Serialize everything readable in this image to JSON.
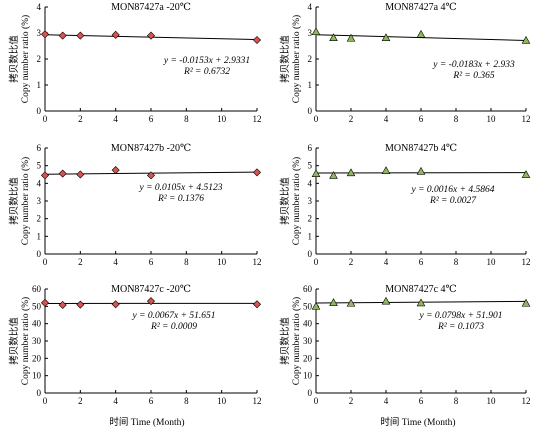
{
  "figure": {
    "x_axis_label": "时间 Time (Month)",
    "y_axis_label_cn": "拷贝数比值",
    "y_axis_label_en": "Copy number ratio (%)"
  },
  "chart_data": [
    {
      "type": "scatter",
      "title": "MON87427a -20℃",
      "marker": "diamond",
      "marker_color": "#d9534f",
      "x": [
        0,
        1,
        2,
        4,
        6,
        12
      ],
      "y": [
        2.95,
        2.9,
        2.9,
        2.93,
        2.9,
        2.73
      ],
      "xlim": [
        0,
        12
      ],
      "xticks": [
        0,
        2,
        4,
        6,
        8,
        10,
        12
      ],
      "ylim": [
        0,
        4
      ],
      "yticks": [
        0,
        1,
        2,
        3,
        4
      ],
      "trendline": {
        "slope": -0.0153,
        "intercept": 2.9331
      },
      "equation": "y = -0.0153x + 2.9331",
      "r2": "R² = 0.6732",
      "ylabel_cn": "拷贝数比值",
      "ylabel_en": "Copy number ratio (%)"
    },
    {
      "type": "scatter",
      "title": "MON87427a  4℃",
      "marker": "triangle",
      "marker_color": "#8fb85a",
      "x": [
        0,
        1,
        2,
        4,
        6,
        12
      ],
      "y": [
        3.05,
        2.82,
        2.8,
        2.82,
        2.95,
        2.72
      ],
      "xlim": [
        0,
        12
      ],
      "xticks": [
        0,
        2,
        4,
        6,
        8,
        10,
        12
      ],
      "ylim": [
        0,
        4
      ],
      "yticks": [
        0,
        1,
        2,
        3,
        4
      ],
      "trendline": {
        "slope": -0.0183,
        "intercept": 2.933
      },
      "equation": "y = -0.0183x + 2.933",
      "r2": "R² = 0.365",
      "ylabel_cn": "拷贝数比值",
      "ylabel_en": "Copy number ratio (%)"
    },
    {
      "type": "scatter",
      "title": "MON87427b  -20℃",
      "marker": "diamond",
      "marker_color": "#d9534f",
      "x": [
        0,
        1,
        2,
        4,
        6,
        12
      ],
      "y": [
        4.45,
        4.55,
        4.5,
        4.75,
        4.45,
        4.62
      ],
      "xlim": [
        0,
        12
      ],
      "xticks": [
        0,
        2,
        4,
        6,
        8,
        10,
        12
      ],
      "ylim": [
        0,
        6
      ],
      "yticks": [
        0,
        1,
        2,
        3,
        4,
        5,
        6
      ],
      "trendline": {
        "slope": 0.0105,
        "intercept": 4.5123
      },
      "equation": "y = 0.0105x + 4.5123",
      "r2": "R² = 0.1376",
      "ylabel_cn": "拷贝数比值",
      "ylabel_en": "Copy number ratio (%)"
    },
    {
      "type": "scatter",
      "title": "MON87427b  4℃",
      "marker": "triangle",
      "marker_color": "#8fb85a",
      "x": [
        0,
        1,
        2,
        4,
        6,
        12
      ],
      "y": [
        4.55,
        4.45,
        4.6,
        4.72,
        4.68,
        4.5
      ],
      "xlim": [
        0,
        12
      ],
      "xticks": [
        0,
        2,
        4,
        6,
        8,
        10,
        12
      ],
      "ylim": [
        0,
        6
      ],
      "yticks": [
        0,
        1,
        2,
        3,
        4,
        5,
        6
      ],
      "trendline": {
        "slope": 0.0016,
        "intercept": 4.5864
      },
      "equation": "y = 0.0016x + 4.5864",
      "r2": "R² = 0.0027",
      "ylabel_cn": "拷贝数比值",
      "ylabel_en": "Copy number ratio (%)"
    },
    {
      "type": "scatter",
      "title": "MON87427c -20℃",
      "marker": "diamond",
      "marker_color": "#d9534f",
      "x": [
        0,
        1,
        2,
        4,
        6,
        12
      ],
      "y": [
        52,
        50.8,
        51,
        51.2,
        53,
        51.2
      ],
      "xlim": [
        0,
        12
      ],
      "xticks": [
        0,
        2,
        4,
        6,
        8,
        10,
        12
      ],
      "ylim": [
        0,
        60
      ],
      "yticks": [
        0,
        10,
        20,
        30,
        40,
        50,
        60
      ],
      "trendline": {
        "slope": 0.0067,
        "intercept": 51.651
      },
      "equation": "y = 0.0067x + 51.651",
      "r2": "R² = 0.0009",
      "ylabel_cn": "拷贝数比值",
      "ylabel_en": "Copy number ratio (%)"
    },
    {
      "type": "scatter",
      "title": "MON87427c  4℃",
      "marker": "triangle",
      "marker_color": "#8fb85a",
      "x": [
        0,
        1,
        2,
        4,
        6,
        12
      ],
      "y": [
        50,
        52.2,
        51.8,
        53,
        52,
        51.8
      ],
      "xlim": [
        0,
        12
      ],
      "xticks": [
        0,
        2,
        4,
        6,
        8,
        10,
        12
      ],
      "ylim": [
        0,
        60
      ],
      "yticks": [
        0,
        10,
        20,
        30,
        40,
        50,
        60
      ],
      "trendline": {
        "slope": 0.0798,
        "intercept": 51.901
      },
      "equation": "y = 0.0798x + 51.901",
      "r2": "R² = 0.1073",
      "ylabel_cn": "拷贝数比值",
      "ylabel_en": "Copy number ratio (%)"
    }
  ]
}
